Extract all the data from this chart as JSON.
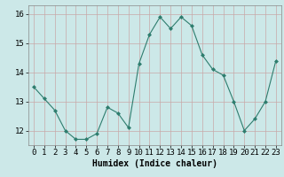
{
  "x": [
    0,
    1,
    2,
    3,
    4,
    5,
    6,
    7,
    8,
    9,
    10,
    11,
    12,
    13,
    14,
    15,
    16,
    17,
    18,
    19,
    20,
    21,
    22,
    23
  ],
  "y": [
    13.5,
    13.1,
    12.7,
    12.0,
    11.7,
    11.7,
    11.9,
    12.8,
    12.6,
    12.1,
    14.3,
    15.3,
    15.9,
    15.5,
    15.9,
    15.6,
    14.6,
    14.1,
    13.9,
    13.0,
    12.0,
    12.4,
    13.0,
    14.4
  ],
  "line_color": "#2e7d6e",
  "marker": "D",
  "marker_size": 2,
  "bg_color": "#cce8e8",
  "grid_color_v": "#c8a8a8",
  "grid_color_h": "#c8a8a8",
  "xlabel": "Humidex (Indice chaleur)",
  "ylim": [
    11.5,
    16.3
  ],
  "yticks": [
    12,
    13,
    14,
    15,
    16
  ],
  "xticks": [
    0,
    1,
    2,
    3,
    4,
    5,
    6,
    7,
    8,
    9,
    10,
    11,
    12,
    13,
    14,
    15,
    16,
    17,
    18,
    19,
    20,
    21,
    22,
    23
  ],
  "xlabel_fontsize": 7,
  "tick_fontsize": 6.5
}
